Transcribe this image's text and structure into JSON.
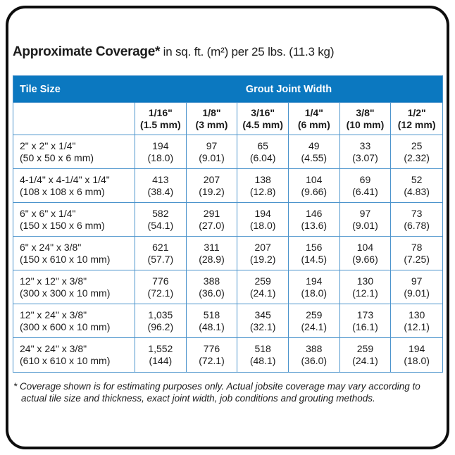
{
  "title": {
    "bold": "Approximate Coverage*",
    "rest": " in sq. ft. (m²) per 25 lbs. (11.3 kg)"
  },
  "colors": {
    "header_blue": "#0b78c0",
    "grid_line_blue": "#4c94cc",
    "frame_black": "#0d0d0d"
  },
  "table": {
    "header": {
      "tile_size": "Tile Size",
      "grout_joint_width": "Grout Joint Width"
    },
    "columns": [
      {
        "inch": "1/16\"",
        "mm": "(1.5 mm)"
      },
      {
        "inch": "1/8\"",
        "mm": "(3 mm)"
      },
      {
        "inch": "3/16\"",
        "mm": "(4.5 mm)"
      },
      {
        "inch": "1/4\"",
        "mm": "(6 mm)"
      },
      {
        "inch": "3/8\"",
        "mm": "(10 mm)"
      },
      {
        "inch": "1/2\"",
        "mm": "(12 mm)"
      }
    ],
    "rows": [
      {
        "size_in": "2\" x 2\" x 1/4\"",
        "size_mm": "(50 x 50 x 6 mm)",
        "values": [
          {
            "v": "194",
            "m": "(18.0)"
          },
          {
            "v": "97",
            "m": "(9.01)"
          },
          {
            "v": "65",
            "m": "(6.04)"
          },
          {
            "v": "49",
            "m": "(4.55)"
          },
          {
            "v": "33",
            "m": "(3.07)"
          },
          {
            "v": "25",
            "m": "(2.32)"
          }
        ]
      },
      {
        "size_in": "4-1/4\" x 4-1/4\" x 1/4\"",
        "size_mm": "(108 x 108 x 6 mm)",
        "values": [
          {
            "v": "413",
            "m": "(38.4)"
          },
          {
            "v": "207",
            "m": "(19.2)"
          },
          {
            "v": "138",
            "m": "(12.8)"
          },
          {
            "v": "104",
            "m": "(9.66)"
          },
          {
            "v": "69",
            "m": "(6.41)"
          },
          {
            "v": "52",
            "m": "(4.83)"
          }
        ]
      },
      {
        "size_in": "6\" x 6\" x 1/4\"",
        "size_mm": "(150 x 150 x 6 mm)",
        "values": [
          {
            "v": "582",
            "m": "(54.1)"
          },
          {
            "v": "291",
            "m": "(27.0)"
          },
          {
            "v": "194",
            "m": "(18.0)"
          },
          {
            "v": "146",
            "m": "(13.6)"
          },
          {
            "v": "97",
            "m": "(9.01)"
          },
          {
            "v": "73",
            "m": "(6.78)"
          }
        ]
      },
      {
        "size_in": "6\" x 24\" x 3/8\"",
        "size_mm": "(150 x 610 x 10 mm)",
        "values": [
          {
            "v": "621",
            "m": "(57.7)"
          },
          {
            "v": "311",
            "m": "(28.9)"
          },
          {
            "v": "207",
            "m": "(19.2)"
          },
          {
            "v": "156",
            "m": "(14.5)"
          },
          {
            "v": "104",
            "m": "(9.66)"
          },
          {
            "v": "78",
            "m": "(7.25)"
          }
        ]
      },
      {
        "size_in": "12\" x 12\" x 3/8\"",
        "size_mm": "(300 x 300 x 10 mm)",
        "values": [
          {
            "v": "776",
            "m": "(72.1)"
          },
          {
            "v": "388",
            "m": "(36.0)"
          },
          {
            "v": "259",
            "m": "(24.1)"
          },
          {
            "v": "194",
            "m": "(18.0)"
          },
          {
            "v": "130",
            "m": "(12.1)"
          },
          {
            "v": "97",
            "m": "(9.01)"
          }
        ]
      },
      {
        "size_in": "12\" x 24\" x 3/8\"",
        "size_mm": "(300 x 600 x 10 mm)",
        "values": [
          {
            "v": "1,035",
            "m": "(96.2)"
          },
          {
            "v": "518",
            "m": "(48.1)"
          },
          {
            "v": "345",
            "m": "(32.1)"
          },
          {
            "v": "259",
            "m": "(24.1)"
          },
          {
            "v": "173",
            "m": "(16.1)"
          },
          {
            "v": "130",
            "m": "(12.1)"
          }
        ]
      },
      {
        "size_in": "24\" x 24\" x 3/8\"",
        "size_mm": "(610 x 610 x 10 mm)",
        "values": [
          {
            "v": "1,552",
            "m": "(144)"
          },
          {
            "v": "776",
            "m": "(72.1)"
          },
          {
            "v": "518",
            "m": "(48.1)"
          },
          {
            "v": "388",
            "m": "(36.0)"
          },
          {
            "v": "259",
            "m": "(24.1)"
          },
          {
            "v": "194",
            "m": "(18.0)"
          }
        ]
      }
    ]
  },
  "footnote": "* Coverage shown is for estimating purposes only. Actual jobsite coverage may vary according to actual tile size and thickness, exact joint width, job conditions and grouting methods."
}
